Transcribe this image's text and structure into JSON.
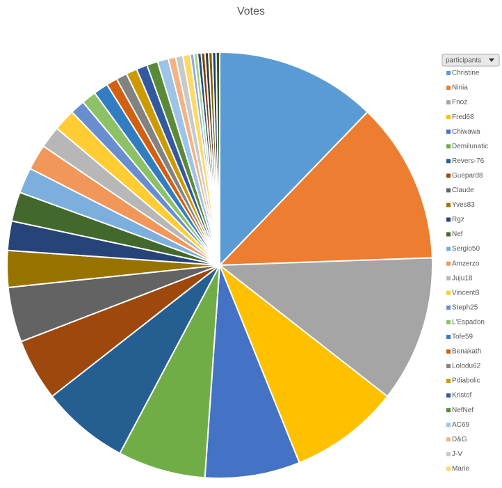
{
  "chart_data": {
    "type": "pie",
    "title": "Votes",
    "legend_title": "participants",
    "categories": [
      "Christine",
      "Ninia",
      "Fnoz",
      "Fred68",
      "Chiwawa",
      "Demilunatic",
      "Revers-76",
      "Guepard8",
      "Claude",
      "Yves83",
      "Rgz",
      "Nef",
      "Sergio50",
      "Amzerzo",
      "Juju18",
      "VincentB",
      "Steph25",
      "L'Espadon",
      "Tofe59",
      "Benakath",
      "Lolodu62",
      "Pdiabolic",
      "Kristof",
      "NefNef",
      "AC69",
      "D&G",
      "J-V",
      "Marie",
      null,
      null,
      null,
      null,
      null,
      null,
      null,
      null
    ],
    "values": [
      44,
      44,
      40,
      30,
      26,
      24,
      24,
      17,
      15,
      10,
      8,
      8,
      7,
      7,
      6,
      6,
      4,
      4,
      4,
      3,
      3,
      3,
      3,
      3,
      3,
      2,
      2,
      2,
      1,
      1,
      1,
      1,
      1,
      1,
      1,
      1
    ],
    "colors": [
      "#5b9bd5",
      "#ed7d31",
      "#a5a5a5",
      "#ffc000",
      "#4472c4",
      "#70ad47",
      "#255e91",
      "#9e480e",
      "#636363",
      "#997300",
      "#264478",
      "#43682b",
      "#7cafdd",
      "#f1975a",
      "#b7b7b7",
      "#ffcd33",
      "#698ed0",
      "#8cc168",
      "#327dc2",
      "#d26012",
      "#828282",
      "#cc9a00",
      "#335aa1",
      "#5a8a39",
      "#9dc3e6",
      "#f4b183",
      "#c9c9c9",
      "#ffd966",
      "#8faadc",
      "#a9d18e",
      "#1f4e79",
      "#843c0c",
      "#3a3a3a",
      "#7f6000",
      "#203864",
      "#385723"
    ],
    "legend_position": "right"
  }
}
